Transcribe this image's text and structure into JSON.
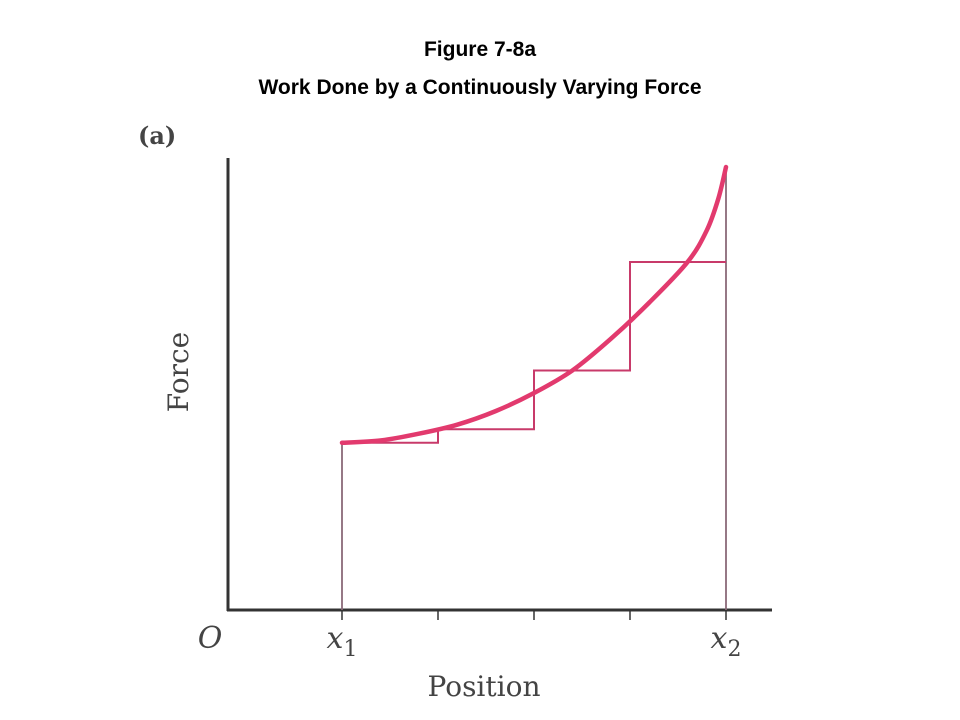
{
  "title": {
    "line1": "Figure 7-8a",
    "line2": "Work Done by a Continuously Varying Force"
  },
  "panel_label": "(a)",
  "colors": {
    "curve": "#e23a6e",
    "steps": "#c83a6a",
    "axes": "#333333",
    "vertical_bounds": "#8a6a78"
  },
  "chart_data": {
    "type": "line",
    "xlabel": "Position",
    "ylabel": "Force",
    "origin_label": "O",
    "x_ticks": [
      {
        "value": 0,
        "label": "O"
      },
      {
        "value": 1,
        "label": "x",
        "sub": "1"
      },
      {
        "value": 1.25,
        "label": ""
      },
      {
        "value": 1.5,
        "label": ""
      },
      {
        "value": 1.75,
        "label": ""
      },
      {
        "value": 2,
        "label": "x",
        "sub": "2"
      }
    ],
    "xlim": [
      0,
      2.3
    ],
    "ylim": [
      0,
      1.0
    ],
    "series": [
      {
        "kind": "curve",
        "x": [
          1.0,
          1.1,
          1.2,
          1.3,
          1.4,
          1.5,
          1.6,
          1.7,
          1.8,
          1.9,
          1.95,
          1.98,
          2.0
        ],
        "y": [
          0.37,
          0.375,
          0.39,
          0.41,
          0.44,
          0.48,
          0.53,
          0.6,
          0.68,
          0.77,
          0.84,
          0.91,
          0.98
        ]
      },
      {
        "kind": "steps",
        "x_edges": [
          1.0,
          1.25,
          1.5,
          1.75,
          2.0
        ],
        "heights": [
          0.37,
          0.4,
          0.53,
          0.77
        ]
      }
    ]
  }
}
